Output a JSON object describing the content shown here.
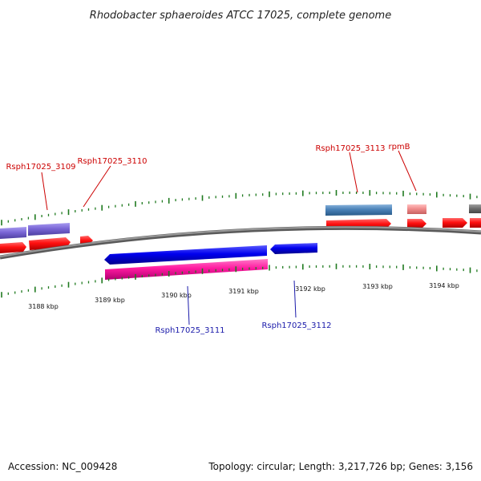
{
  "title": "Rhodobacter sphaeroides ATCC 17025, complete genome",
  "footer": {
    "accession": "Accession: NC_009428",
    "summary": "Topology: circular; Length: 3,217,726 bp; Genes: 3,156"
  },
  "colors": {
    "backbone": "#8a8a8a",
    "tick": "#1f7a1f",
    "label_forward": "#cc0000",
    "label_reverse": "#1a1aaa"
  },
  "ticks": {
    "labels": [
      "3188 kbp",
      "3189 kbp",
      "3190 kbp",
      "3191 kbp",
      "3192 kbp",
      "3193 kbp",
      "3194 kbp"
    ]
  },
  "genes": {
    "forward_labels": [
      "Rsph17025_3109",
      "Rsph17025_3110",
      "Rsph17025_3113",
      "rpmB"
    ],
    "reverse_labels": [
      "Rsph17025_3111",
      "Rsph17025_3112"
    ]
  }
}
